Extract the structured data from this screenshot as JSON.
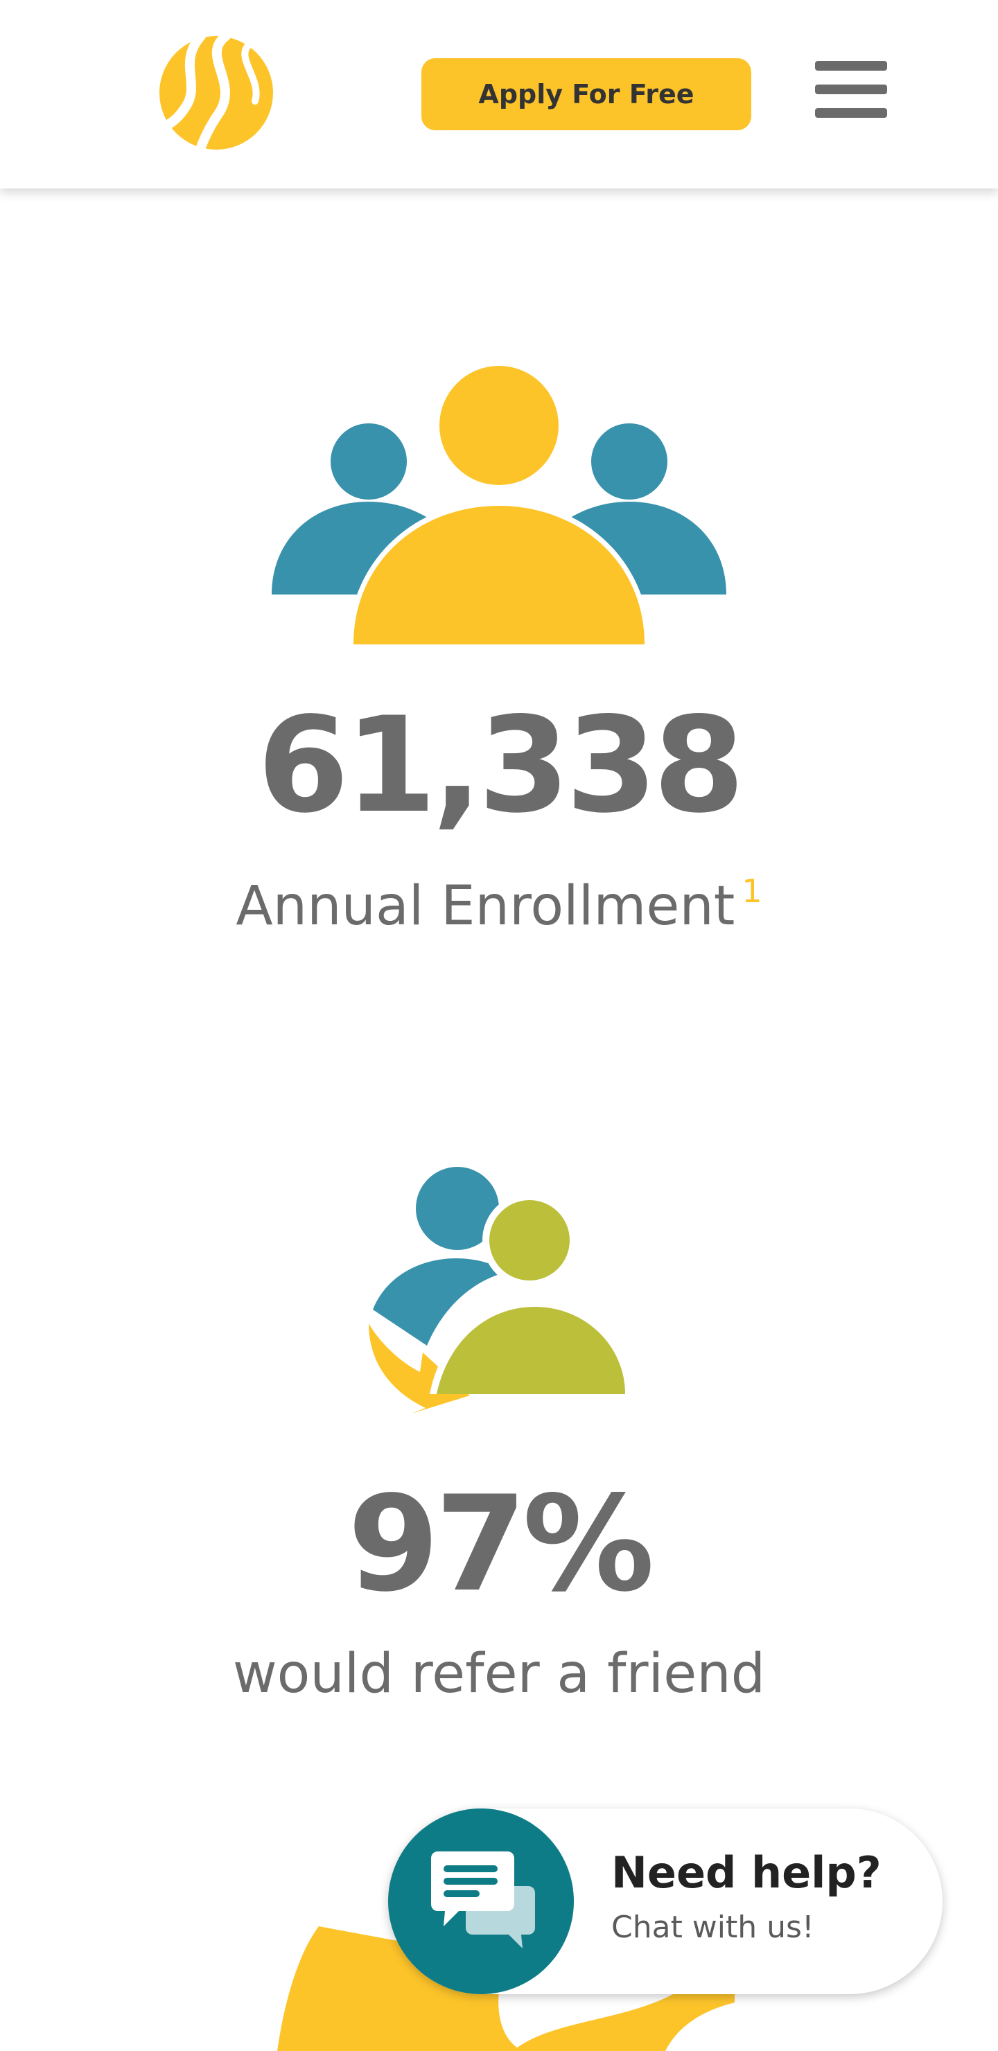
{
  "header": {
    "apply_label": "Apply For Free"
  },
  "stats": [
    {
      "number": "61,338",
      "label": "Annual Enrollment",
      "footnote": "1"
    },
    {
      "number": "97%",
      "label": "would refer a friend"
    }
  ],
  "chat": {
    "title": "Need help?",
    "subtitle": "Chat with us!"
  },
  "icons": {
    "logo": "road-logo-icon",
    "menu": "hamburger-menu-icon",
    "stat1": "group-people-icon",
    "stat2": "refer-friend-icon",
    "stat3": "partial-yellow-icon",
    "chat": "chat-bubbles-icon"
  },
  "colors": {
    "brand_yellow": "#fdc42a",
    "teal_blue": "#3892ac",
    "olive_green": "#bcbf3a",
    "chat_teal": "#0e7c86",
    "text_gray": "#6b6b6b"
  }
}
